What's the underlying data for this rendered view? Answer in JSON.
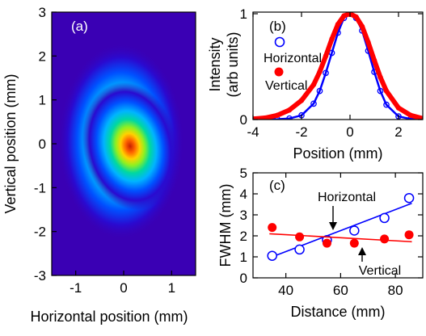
{
  "chart_data": [
    {
      "panel": "(a)",
      "type": "heatmap",
      "xlabel": "Horizontal position (mm)",
      "ylabel": "Vertical position (mm)",
      "xlim": [
        -1.5,
        1.5
      ],
      "ylim": [
        -3,
        3
      ],
      "xticks": [
        "-1",
        "0",
        "1"
      ],
      "yticks": [
        "3",
        "2",
        "1",
        "0",
        "-1",
        "-2",
        "-3"
      ],
      "colormap": "jet",
      "beam": {
        "center": [
          0,
          0.05
        ],
        "fwhm_x": 1.0,
        "fwhm_y": 1.2,
        "background_color": "#3a00b4"
      }
    },
    {
      "panel": "(b)",
      "type": "line",
      "xlabel": "Position (mm)",
      "ylabel": [
        "Intensity",
        "(arb units)"
      ],
      "xlim": [
        -4,
        3
      ],
      "ylim": [
        0,
        1
      ],
      "xticks": [
        "-4",
        "-2",
        "0",
        "2"
      ],
      "yticks": [
        "1",
        "0"
      ],
      "series": [
        {
          "name": "Horizontal",
          "color": "#0000ff",
          "marker": "open-circle",
          "x": [
            -4.0,
            -3.5,
            -3.0,
            -2.5,
            -2.0,
            -1.5,
            -1.25,
            -1.0,
            -0.75,
            -0.5,
            -0.25,
            0.0,
            0.25,
            0.5,
            0.75,
            1.0,
            1.25,
            1.5,
            2.0,
            2.5,
            3.0
          ],
          "y": [
            0.0,
            0.0,
            0.003,
            0.01,
            0.04,
            0.15,
            0.27,
            0.44,
            0.63,
            0.82,
            0.96,
            1.0,
            0.96,
            0.84,
            0.65,
            0.45,
            0.27,
            0.14,
            0.03,
            0.005,
            0.0
          ]
        },
        {
          "name": "Vertical",
          "color": "#ff0000",
          "marker": "filled-circle",
          "x": [
            -4.0,
            -3.5,
            -3.0,
            -2.5,
            -2.0,
            -1.5,
            -1.25,
            -1.0,
            -0.75,
            -0.5,
            -0.25,
            0.0,
            0.25,
            0.5,
            0.75,
            1.0,
            1.25,
            1.5,
            2.0,
            2.5,
            3.0
          ],
          "y": [
            0.005,
            0.015,
            0.04,
            0.09,
            0.18,
            0.33,
            0.45,
            0.6,
            0.76,
            0.9,
            0.98,
            1.0,
            0.97,
            0.88,
            0.73,
            0.56,
            0.4,
            0.27,
            0.11,
            0.04,
            0.01
          ]
        }
      ]
    },
    {
      "panel": "(c)",
      "type": "scatter",
      "xlabel": "Distance (mm)",
      "ylabel": "FWHM (mm)",
      "xlim": [
        28,
        90
      ],
      "ylim": [
        0,
        5
      ],
      "xticks": [
        "40",
        "60",
        "80"
      ],
      "yticks": [
        "5",
        "4",
        "3",
        "2",
        "1",
        "0"
      ],
      "series": [
        {
          "name": "Horizontal",
          "color": "#0000ff",
          "marker": "open-circle",
          "x": [
            35,
            45,
            55,
            65,
            76,
            85
          ],
          "y": [
            1.05,
            1.35,
            1.8,
            2.25,
            2.85,
            3.8
          ],
          "fit": {
            "x": [
              34,
              86
            ],
            "y": [
              0.95,
              3.55
            ]
          }
        },
        {
          "name": "Vertical",
          "color": "#ff0000",
          "marker": "filled-circle",
          "x": [
            35,
            45,
            55,
            65,
            76,
            85
          ],
          "y": [
            2.4,
            1.95,
            1.65,
            1.65,
            1.85,
            2.05
          ],
          "fit": {
            "x": [
              34,
              86
            ],
            "y": [
              2.1,
              1.72
            ]
          }
        }
      ],
      "annotations": [
        "Horizontal",
        "Vertical"
      ]
    }
  ]
}
